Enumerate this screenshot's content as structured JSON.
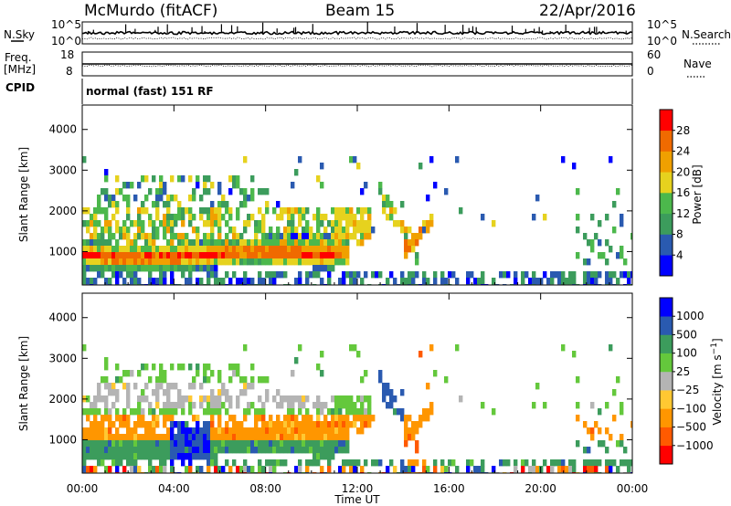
{
  "header": {
    "station": "McMurdo (fitACF)",
    "beam": "Beam 15",
    "date": "22/Apr/2016"
  },
  "noise_panel": {
    "left_label": "N.Sky",
    "right_label": "N.Search",
    "left_ticks": [
      "10^5",
      "10^0"
    ],
    "right_ticks": [
      "10^5",
      "10^0"
    ]
  },
  "freq_panel": {
    "left_label_line1": "Freq.",
    "left_label_line2": "[MHz]",
    "right_label": "Nave",
    "left_ticks": [
      "18",
      "8"
    ],
    "right_ticks": [
      "60",
      "0"
    ]
  },
  "cpid": {
    "label": "CPID",
    "value": "normal (fast) 151 RF"
  },
  "colors": {
    "power_scale": [
      "#0000ff",
      "#2a5ab0",
      "#3c9c5c",
      "#4cb84c",
      "#e6d21e",
      "#f0a000",
      "#f06a00",
      "#ff0000"
    ],
    "velocity_scale": [
      "#ff0000",
      "#ff5a00",
      "#ff9600",
      "#ffc832",
      "#b4b4b4",
      "#64c83c",
      "#3c9c5c",
      "#2a5ab0",
      "#0000ff"
    ]
  },
  "chart_data": [
    {
      "type": "heatmap",
      "quantity": "Power",
      "xlabel": "Time UT",
      "ylabel": "Slant Range [km]",
      "x_ticks": [
        "00:00",
        "04:00",
        "08:00",
        "12:00",
        "16:00",
        "20:00",
        "00:00"
      ],
      "y_ticks": [
        1000,
        2000,
        3000,
        4000
      ],
      "ylim": [
        180,
        4600
      ],
      "colorbar": {
        "label": "Power [dB]",
        "ticks": [
          "4",
          "8",
          "12",
          "16",
          "20",
          "24",
          "28"
        ]
      }
    },
    {
      "type": "heatmap",
      "quantity": "Velocity",
      "xlabel": "Time UT",
      "ylabel": "Slant Range [km]",
      "x_ticks": [
        "00:00",
        "04:00",
        "08:00",
        "12:00",
        "16:00",
        "20:00",
        "00:00"
      ],
      "y_ticks": [
        1000,
        2000,
        3000,
        4000
      ],
      "ylim": [
        180,
        4600
      ],
      "colorbar": {
        "label": "Velocity [m s^-1]",
        "ticks": [
          "1000",
          "500",
          "100",
          "25",
          "−25",
          "−100",
          "−500",
          "−1000"
        ]
      }
    }
  ]
}
